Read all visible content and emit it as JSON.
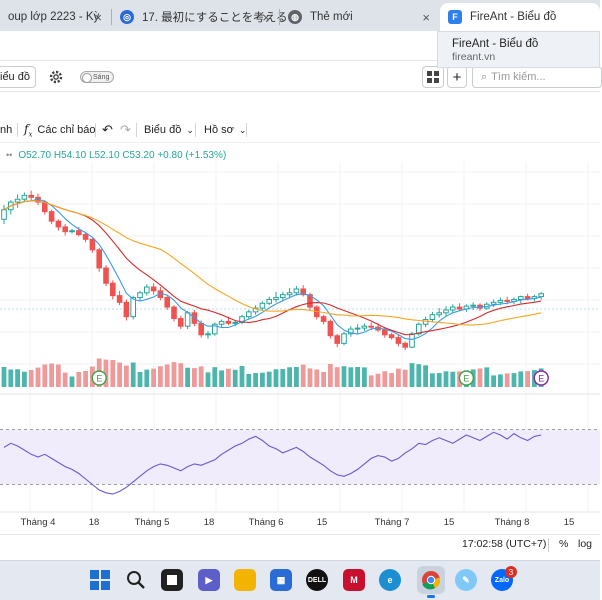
{
  "browser": {
    "tabs": [
      {
        "label": "oup lớp 2223 - Kỳ",
        "icon": "generic-tab-icon",
        "active": false
      },
      {
        "label": "17. 最初にすることを考える",
        "icon": "app-tab-icon",
        "active": false
      },
      {
        "label": "Thẻ mới",
        "icon": "globe-icon",
        "active": false
      },
      {
        "label": "FireAnt - Biểu đồ",
        "icon": "fireant-logo-icon",
        "active": true
      }
    ],
    "tab_close_glyph": "×",
    "tab_tooltip": {
      "title": "FireAnt - Biểu đồ",
      "url": "fireant.vn"
    }
  },
  "app": {
    "chart_mode_label": "iểu đồ",
    "toggle_label": "Sáng",
    "search_placeholder": "Tìm kiếm..."
  },
  "toolbar": {
    "interval_label": "nh",
    "indicators_label": "Các chỉ báo",
    "chart_label": "Biểu đồ",
    "profile_label": "Hồ sơ"
  },
  "ohlc": {
    "open": "O52.70",
    "high": "H54.10",
    "low": "L52.10",
    "close": "C53.20",
    "change": "+0.80 (+1.53%)"
  },
  "chart_data": {
    "type": "candlestick",
    "x_tick_labels": [
      "Tháng 4",
      "18",
      "Tháng 5",
      "18",
      "Tháng 6",
      "15",
      "Tháng 7",
      "15",
      "Tháng 8",
      "15"
    ],
    "series": [
      {
        "name": "",
        "kind": "ohlc",
        "values": [
          [
            51,
            52.5,
            50.5,
            52
          ],
          [
            52,
            53,
            51.5,
            52.8
          ],
          [
            52.8,
            53.6,
            52.2,
            53.1
          ],
          [
            53.1,
            53.8,
            52.9,
            53.5
          ],
          [
            53.5,
            54,
            53,
            53.3
          ],
          [
            53.3,
            53.7,
            52.5,
            52.8
          ],
          [
            52.8,
            53,
            51.5,
            51.8
          ],
          [
            51.8,
            52,
            50.5,
            50.8
          ],
          [
            50.8,
            51,
            49.8,
            50.2
          ],
          [
            50.2,
            50.5,
            49.3,
            49.7
          ],
          [
            49.7,
            50,
            49.5,
            49.8
          ],
          [
            49.8,
            50.2,
            49.2,
            49.4
          ],
          [
            49.4,
            49.6,
            48.6,
            48.9
          ],
          [
            48.9,
            49,
            47.5,
            47.8
          ],
          [
            47.8,
            48,
            45.5,
            45.9
          ],
          [
            45.9,
            46.2,
            44,
            44.3
          ],
          [
            44.3,
            44.6,
            42.6,
            43
          ],
          [
            43,
            43.5,
            42,
            42.3
          ],
          [
            42.3,
            42.6,
            40.4,
            40.8
          ],
          [
            40.8,
            43,
            40.5,
            42.8
          ],
          [
            42.8,
            43.5,
            42.5,
            43.3
          ],
          [
            43.3,
            44.2,
            43,
            43.9
          ],
          [
            43.9,
            44.3,
            43.1,
            43.5
          ],
          [
            43.5,
            43.9,
            42.5,
            42.8
          ],
          [
            42.8,
            43,
            41.5,
            41.8
          ],
          [
            41.8,
            42,
            40.3,
            40.6
          ],
          [
            40.6,
            40.9,
            39.5,
            39.8
          ],
          [
            39.8,
            41.4,
            39.5,
            41.2
          ],
          [
            41.2,
            41.5,
            39.8,
            40.1
          ],
          [
            40.1,
            40.4,
            38.6,
            38.9
          ],
          [
            38.9,
            39.3,
            38.5,
            39
          ],
          [
            39,
            40.2,
            38.8,
            40
          ],
          [
            40,
            40.5,
            39.7,
            40.3
          ],
          [
            40.3,
            40.8,
            39.9,
            40.1
          ],
          [
            40.1,
            40.4,
            39.8,
            40.2
          ],
          [
            40.2,
            41,
            40,
            40.8
          ],
          [
            40.8,
            41.5,
            40.5,
            41.3
          ],
          [
            41.3,
            42,
            41,
            41.7
          ],
          [
            41.7,
            42.4,
            41.5,
            42.2
          ],
          [
            42.2,
            42.9,
            42,
            42.6
          ],
          [
            42.6,
            43.4,
            42.3,
            42.8
          ],
          [
            42.8,
            43.4,
            42.4,
            43.1
          ],
          [
            43.1,
            43.8,
            42.7,
            43.3
          ],
          [
            43.3,
            44,
            43,
            43.7
          ],
          [
            43.7,
            44.1,
            42.9,
            43.1
          ],
          [
            43.1,
            43.3,
            41.5,
            41.8
          ],
          [
            41.8,
            42,
            40.5,
            40.8
          ],
          [
            40.8,
            41,
            40,
            40.3
          ],
          [
            40.3,
            40.5,
            38.5,
            38.8
          ],
          [
            38.8,
            39,
            37.6,
            38
          ],
          [
            38,
            39.2,
            37.8,
            39
          ],
          [
            39,
            39.8,
            38.7,
            39.5
          ],
          [
            39.5,
            40,
            39,
            39.6
          ],
          [
            39.6,
            40.1,
            39.3,
            39.8
          ],
          [
            39.8,
            40.2,
            39.4,
            39.7
          ],
          [
            39.7,
            40.1,
            39.2,
            39.4
          ],
          [
            39.4,
            39.7,
            38.6,
            38.9
          ],
          [
            38.9,
            39.1,
            38.4,
            38.6
          ],
          [
            38.6,
            38.9,
            37.7,
            38
          ],
          [
            38,
            38.2,
            37.3,
            37.6
          ],
          [
            37.6,
            39.2,
            37.5,
            39
          ],
          [
            39,
            40.2,
            38.8,
            40
          ],
          [
            40,
            40.8,
            39.7,
            40.5
          ],
          [
            40.5,
            41.3,
            40.2,
            41
          ],
          [
            41,
            41.7,
            40.7,
            41.2
          ],
          [
            41.2,
            41.9,
            40.8,
            41.5
          ],
          [
            41.5,
            42.1,
            41.2,
            41.8
          ],
          [
            41.8,
            42.2,
            41.4,
            41.6
          ],
          [
            41.6,
            42.1,
            41.3,
            41.9
          ],
          [
            41.9,
            42.3,
            41.5,
            42
          ],
          [
            42,
            42.2,
            41.4,
            41.7
          ],
          [
            41.7,
            42.3,
            41.5,
            42.1
          ],
          [
            42.1,
            42.6,
            41.8,
            42.3
          ],
          [
            42.3,
            42.8,
            42,
            42.5
          ],
          [
            42.5,
            42.9,
            42.1,
            42.4
          ],
          [
            42.4,
            42.8,
            42.1,
            42.6
          ],
          [
            42.6,
            43,
            42.2,
            42.9
          ],
          [
            42.9,
            43.2,
            42.5,
            42.7
          ],
          [
            42.7,
            43.1,
            42.4,
            42.9
          ],
          [
            42.9,
            43.4,
            42.6,
            43.2
          ]
        ]
      },
      {
        "name": "",
        "kind": "ma-fast",
        "color": "#3d9be9"
      },
      {
        "name": "",
        "kind": "ma-mid",
        "color": "#d62b2b"
      },
      {
        "name": "",
        "kind": "ma-slow",
        "color": "#f5a623"
      }
    ],
    "volume_colors": {
      "up": "#4db6ac",
      "down": "#ef9a9a"
    },
    "event_markers": [
      "E",
      "E",
      "E"
    ],
    "oscillator": {
      "values": [
        57,
        60,
        58,
        55,
        52,
        50,
        52,
        49,
        46,
        43,
        41,
        38,
        34,
        30,
        26,
        24,
        23,
        25,
        28,
        32,
        36,
        40,
        43,
        45,
        44,
        42,
        40,
        43,
        45,
        44,
        46,
        48,
        52,
        55,
        58,
        60,
        63,
        65,
        62,
        58,
        56,
        53,
        55,
        57,
        54,
        50,
        47,
        44,
        40,
        37,
        36,
        38,
        41,
        45,
        49,
        51,
        50,
        47,
        49,
        53,
        56,
        60,
        59,
        62,
        64,
        62,
        60,
        63,
        66,
        64,
        62,
        65,
        68,
        66,
        63,
        67,
        64,
        62,
        65,
        66
      ],
      "band_upper": 70,
      "band_lower": 30,
      "ylim": [
        10,
        90
      ]
    },
    "ylim": [
      35,
      57
    ]
  },
  "status": {
    "clock": "17:02:58 (UTC+7)",
    "percent_label": "%",
    "log_label": "log"
  },
  "taskbar": {
    "icons": [
      "windows-start-icon",
      "search-icon",
      "task-view-icon",
      "teams-icon",
      "file-explorer-icon",
      "store-icon",
      "dell-icon",
      "mcafee-icon",
      "edge-icon",
      "chrome-icon",
      "paint-icon",
      "zalo-icon"
    ],
    "dell_label": "DELL",
    "zalo_label": "Zalo",
    "zalo_badge": "3"
  },
  "colors": {
    "up": "#26a69a",
    "down": "#ef5350",
    "accent": "#1a73e8",
    "oscillator_line": "#6a5acd",
    "oscillator_band": "#f0ecfb"
  }
}
